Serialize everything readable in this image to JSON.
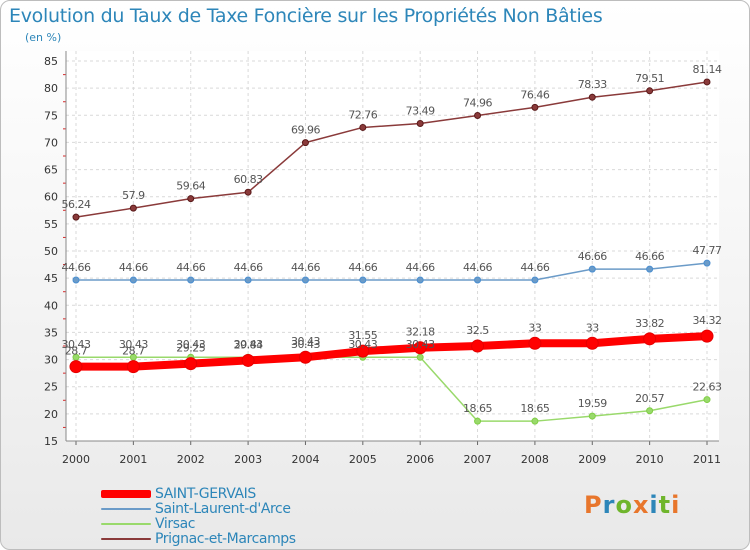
{
  "title": "Evolution du Taux de Taxe Foncière sur les Propriétés Non Bâties",
  "subtitle": "(en %)",
  "logo": {
    "text": "Proxiti",
    "colors": [
      "#e8762c",
      "#2d86b9",
      "#6fb52c",
      "#e8762c",
      "#2d86b9",
      "#6fb52c",
      "#e8762c"
    ]
  },
  "chart_data": {
    "type": "line",
    "x": [
      "2000",
      "2001",
      "2002",
      "2003",
      "2004",
      "2005",
      "2006",
      "2007",
      "2008",
      "2009",
      "2010",
      "2011"
    ],
    "ylim": [
      15,
      85
    ],
    "yticks": [
      15,
      20,
      25,
      30,
      35,
      40,
      45,
      50,
      55,
      60,
      65,
      70,
      75,
      80,
      85
    ],
    "grid": true,
    "legend_position": "bottom-left",
    "series": [
      {
        "name": "SAINT-GERVAIS",
        "color": "#ff0000",
        "marker_color": "#e50000",
        "line_width": 8,
        "marker_radius": 6,
        "values": [
          28.7,
          28.7,
          29.25,
          29.84,
          30.43,
          31.55,
          32.18,
          32.5,
          33,
          33,
          33.82,
          34.32
        ],
        "labels": [
          "28.7",
          "28.7",
          "29.25",
          "29.84",
          "30.43",
          "31.55",
          "32.18",
          "32.5",
          "33",
          "33",
          "33.82",
          "34.32"
        ]
      },
      {
        "name": "Saint-Laurent-d'Arce",
        "color": "#6b9bc8",
        "marker_color": "#4a8ed0",
        "line_width": 1.5,
        "marker_radius": 3,
        "values": [
          44.66,
          44.66,
          44.66,
          44.66,
          44.66,
          44.66,
          44.66,
          44.66,
          44.66,
          46.66,
          46.66,
          47.77
        ],
        "labels": [
          "44.66",
          "44.66",
          "44.66",
          "44.66",
          "44.66",
          "44.66",
          "44.66",
          "44.66",
          "44.66",
          "46.66",
          "46.66",
          "47.77"
        ]
      },
      {
        "name": "Virsac",
        "color": "#99d96b",
        "marker_color": "#7fce44",
        "line_width": 1.5,
        "marker_radius": 3,
        "values": [
          30.43,
          30.43,
          30.43,
          30.43,
          30.43,
          30.43,
          30.43,
          18.65,
          18.65,
          19.59,
          20.57,
          22.63
        ],
        "labels": [
          "30.43",
          "30.43",
          "30.43",
          "30.43",
          "30.43",
          "30.43",
          "30.43",
          "18.65",
          "18.65",
          "19.59",
          "20.57",
          "22.63"
        ]
      },
      {
        "name": "Prignac-et-Marcamps",
        "color": "#8a3a3a",
        "marker_color": "#5a1a1a",
        "line_width": 1.5,
        "marker_radius": 3,
        "values": [
          56.24,
          57.9,
          59.64,
          60.83,
          69.96,
          72.76,
          73.49,
          74.96,
          76.46,
          78.33,
          79.51,
          81.14
        ],
        "labels": [
          "56.24",
          "57.9",
          "59.64",
          "60.83",
          "69.96",
          "72.76",
          "73.49",
          "74.96",
          "76.46",
          "78.33",
          "79.51",
          "81.14"
        ]
      }
    ]
  }
}
